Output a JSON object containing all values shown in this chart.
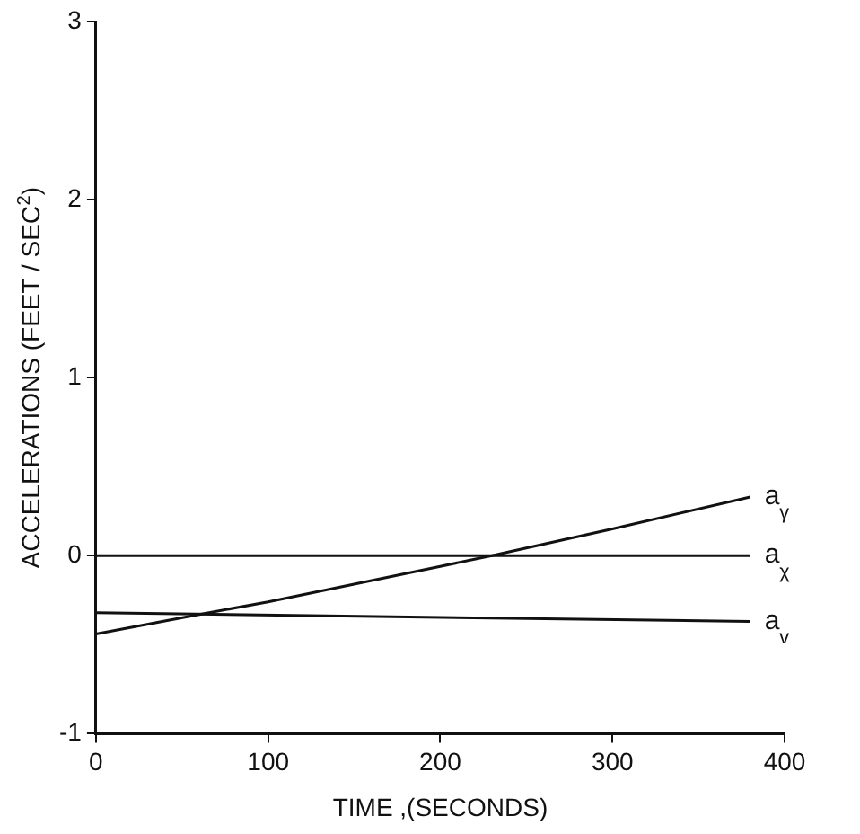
{
  "chart_data": {
    "type": "line",
    "xlabel": "TIME ,(SECONDS)",
    "ylabel": "ACCELERATIONS (FEET / SEC$^{2}$)",
    "xlim": [
      0,
      400
    ],
    "xticks": [
      0,
      100,
      200,
      300,
      400
    ],
    "ylim": [
      -1,
      3
    ],
    "yticks": [
      -1,
      0,
      1,
      2,
      3
    ],
    "grid": false,
    "legend": false,
    "marker": "none",
    "line_style": "solid",
    "series": [
      {
        "name": "a$_{γ}$",
        "color": "#111111",
        "x": [
          0,
          60,
          100,
          150,
          200,
          230,
          300,
          380
        ],
        "values": [
          -0.44,
          -0.33,
          -0.26,
          -0.16,
          -0.06,
          0,
          0.15,
          0.33
        ]
      },
      {
        "name": "a$_{χ}$",
        "color": "#111111",
        "x": [
          0,
          380
        ],
        "values": [
          0,
          0
        ]
      },
      {
        "name": "a$_{v}$",
        "color": "#111111",
        "x": [
          0,
          380
        ],
        "values": [
          -0.32,
          -0.37
        ]
      }
    ]
  }
}
